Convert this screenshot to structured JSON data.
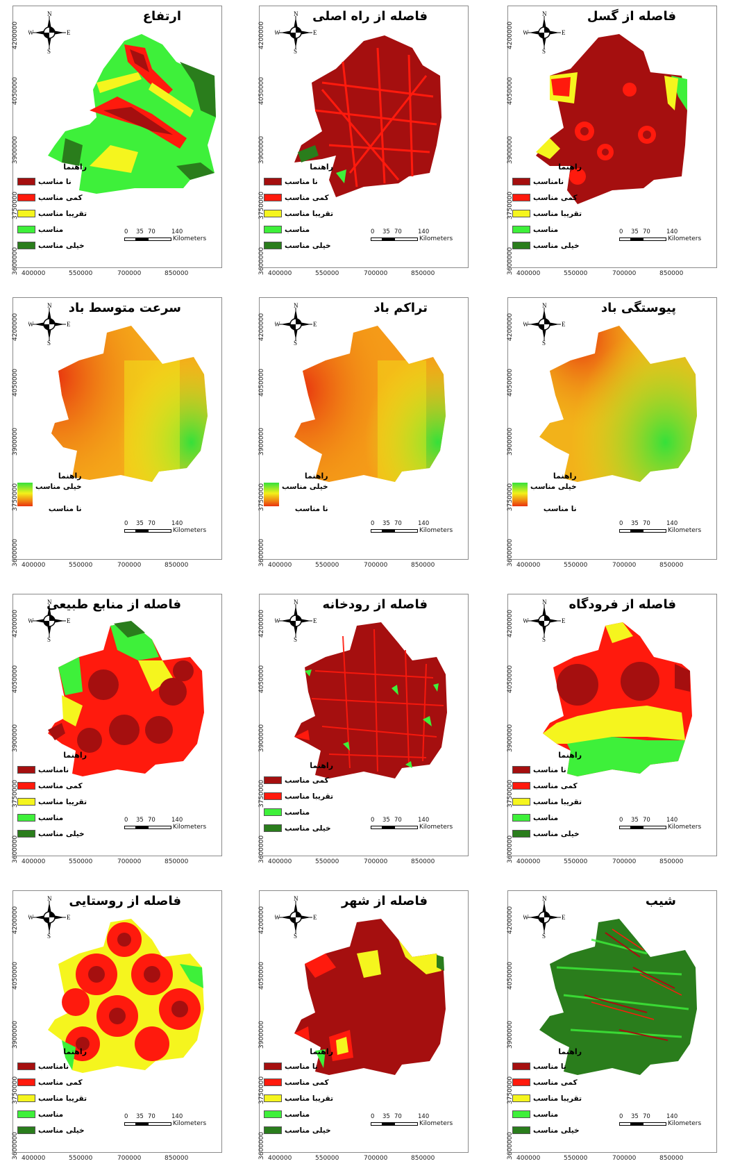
{
  "legend_title": "راهنما",
  "scale": {
    "ticks": [
      "0",
      "35",
      "70",
      "140"
    ],
    "unit": "Kilometers"
  },
  "compass": {
    "n": "N",
    "s": "S",
    "e": "E",
    "w": "W"
  },
  "yticks": [
    "4200000",
    "4050000",
    "3900000",
    "3750000",
    "3600000"
  ],
  "xticks": [
    "400000",
    "550000",
    "700000",
    "850000"
  ],
  "colors": {
    "dark_red": "#a50f0f",
    "red": "#ff1a0d",
    "yellow": "#f5f51e",
    "light_green": "#3ef03a",
    "dark_green": "#2a7d1c"
  },
  "panels": [
    {
      "title": "ارتفاع",
      "legend": [
        "نا مناسب",
        "کمی مناسب",
        "تقریبا مناسب",
        "مناسب",
        "خیلی مناسب"
      ]
    },
    {
      "title": "فاصله از راه اصلی",
      "legend": [
        "نا مناسب",
        "کمی مناسب",
        "تقریبا مناسب",
        "مناسب",
        "خیلی مناسب"
      ]
    },
    {
      "title": "فاصله از گسل",
      "legend": [
        "نامناسب",
        "کمی مناسب",
        "تقریبا مناسب",
        "مناسب",
        "خیلی مناسب"
      ]
    },
    {
      "title": "سرعت متوسط باد",
      "legend": [
        "خیلی مناسب",
        "نا مناسب"
      ]
    },
    {
      "title": "تراکم باد",
      "legend": [
        "خیلی مناسب",
        "نا مناسب"
      ]
    },
    {
      "title": "پیوستگی باد",
      "legend": [
        "خیلی مناسب",
        "نا مناسب"
      ]
    },
    {
      "title": "فاصله از منابع طبیعی",
      "legend": [
        "نامناسب",
        "کمی مناسب",
        "تقریبا مناسب",
        "مناسب",
        "خیلی مناسب"
      ]
    },
    {
      "title": "فاصله از رودخانه",
      "legend": [
        "کمی مناسب",
        "تقریبا مناسب",
        "مناسب",
        "خیلی مناسب"
      ]
    },
    {
      "title": "فاصله از فرودگاه",
      "legend": [
        "نا مناسب",
        "کمی مناسب",
        "تقریبا مناسب",
        "مناسب",
        "خیلی مناسب"
      ]
    },
    {
      "title": "فاصله از روستایی",
      "legend": [
        "نامناسب",
        "کمی مناسب",
        "تقریبا مناسب",
        "مناسب",
        "خیلی مناسب"
      ]
    },
    {
      "title": "فاصله از شهر",
      "legend": [
        "نا مناسب",
        "کمی مناسب",
        "تقریبا مناسب",
        "مناسب",
        "خیلی مناسب"
      ]
    },
    {
      "title": "شیب",
      "legend": [
        "نا مناسب",
        "کمی مناسب",
        "تقریبا مناسب",
        "مناسب",
        "خیلی مناسب"
      ]
    }
  ]
}
